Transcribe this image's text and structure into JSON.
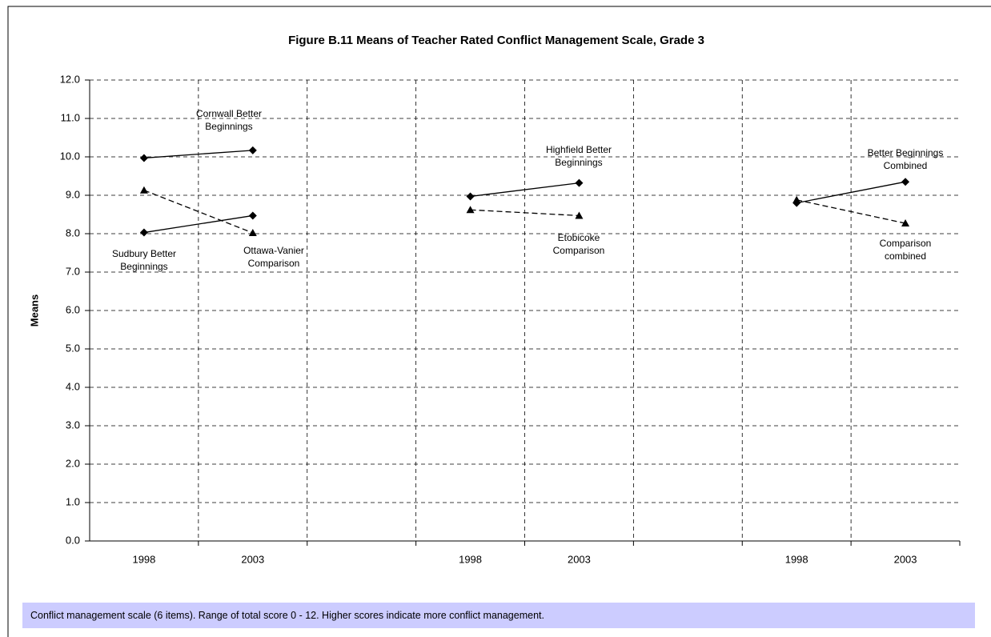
{
  "chart_data": {
    "type": "line",
    "title": "Figure B.11  Means of Teacher Rated Conflict Management Scale, Grade 3",
    "y_label": "Means",
    "categories": [
      "1998",
      "2003",
      null,
      "1998",
      "2003",
      null,
      "1998",
      "2003"
    ],
    "series": [
      {
        "name": "Cornwall Better Beginnings",
        "color": "#000000",
        "line_style": "solid",
        "marker": "diamond",
        "values": [
          9.97,
          10.17,
          null,
          null,
          null,
          null,
          null,
          null
        ]
      },
      {
        "name": "Ottawa-Vanier Comparison",
        "color": "#000000",
        "line_style": "dashed",
        "marker": "triangle",
        "values": [
          9.13,
          8.02,
          null,
          null,
          null,
          null,
          null,
          null
        ]
      },
      {
        "name": "Sudbury Better Beginnings",
        "color": "#000000",
        "line_style": "solid",
        "marker": "diamond",
        "values": [
          8.03,
          8.47,
          null,
          null,
          null,
          null,
          null,
          null
        ]
      },
      {
        "name": "Highfield Better Beginnings",
        "color": "#000000",
        "line_style": "solid",
        "marker": "diamond",
        "values": [
          null,
          null,
          null,
          8.97,
          9.32,
          null,
          null,
          null
        ]
      },
      {
        "name": "Etobicoke Comparison",
        "color": "#000000",
        "line_style": "dashed",
        "marker": "triangle",
        "values": [
          null,
          null,
          null,
          8.62,
          8.47,
          null,
          null,
          null
        ]
      },
      {
        "name": "Better Beginnings Combined",
        "color": "#000000",
        "line_style": "solid",
        "marker": "diamond",
        "values": [
          null,
          null,
          null,
          null,
          null,
          null,
          8.8,
          9.35
        ]
      },
      {
        "name": "Comparison combined",
        "color": "#000000",
        "line_style": "dashed",
        "marker": "triangle",
        "values": [
          null,
          null,
          null,
          null,
          null,
          null,
          8.88,
          8.27
        ]
      }
    ],
    "ylim": [
      0,
      12
    ],
    "yticks": [
      {
        "value": 0,
        "label": "0.0"
      },
      {
        "value": 1,
        "label": "1.0"
      },
      {
        "value": 2,
        "label": "2.0"
      },
      {
        "value": 3,
        "label": "3.0"
      },
      {
        "value": 4,
        "label": "4.0"
      },
      {
        "value": 5,
        "label": "5.0"
      },
      {
        "value": 6,
        "label": "6.0"
      },
      {
        "value": 7,
        "label": "7.0"
      },
      {
        "value": 8,
        "label": "8.0"
      },
      {
        "value": 9,
        "label": "9.0"
      },
      {
        "value": 10,
        "label": "10.0"
      },
      {
        "value": 11,
        "label": "11.0"
      },
      {
        "value": 12,
        "label": "12.0"
      }
    ],
    "grid": true,
    "footnote": "Conflict management scale (6 items). Range of total score 0 - 12. Higher scores indicate more conflict management."
  }
}
